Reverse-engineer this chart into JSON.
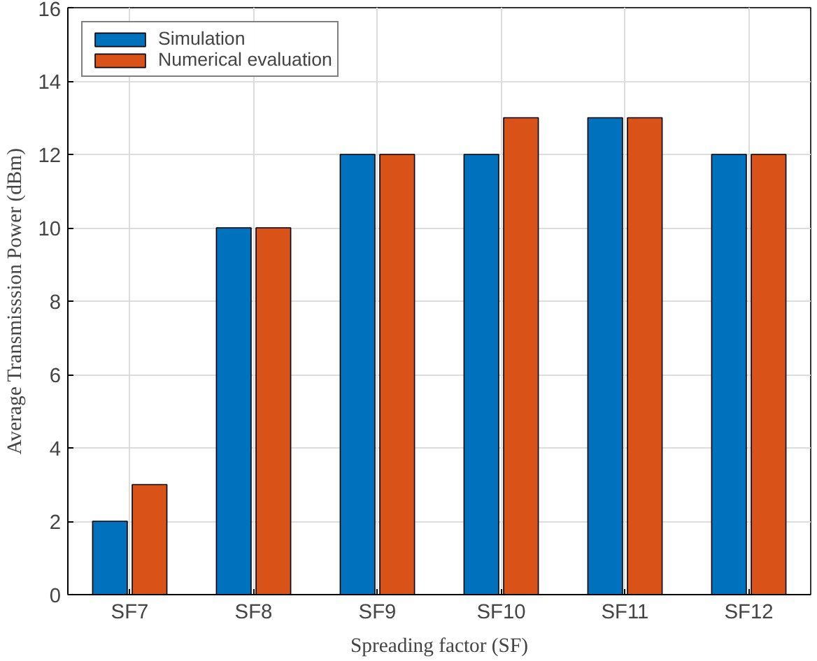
{
  "chart_data": {
    "type": "bar",
    "xlabel": "Spreading factor (SF)",
    "ylabel": "Average Transmisssion Power (dBm)",
    "categories": [
      "SF7",
      "SF8",
      "SF9",
      "SF10",
      "SF11",
      "SF12"
    ],
    "series": [
      {
        "name": "Simulation",
        "color": "#0072bd",
        "values": [
          2,
          10,
          12,
          12,
          13,
          12
        ]
      },
      {
        "name": "Numerical evaluation",
        "color": "#d95319",
        "values": [
          3,
          10,
          12,
          13,
          13,
          12
        ]
      }
    ],
    "ylim": [
      0,
      16
    ],
    "yticks": [
      0,
      2,
      4,
      6,
      8,
      10,
      12,
      14,
      16
    ],
    "grid": true,
    "legend": "top left"
  }
}
